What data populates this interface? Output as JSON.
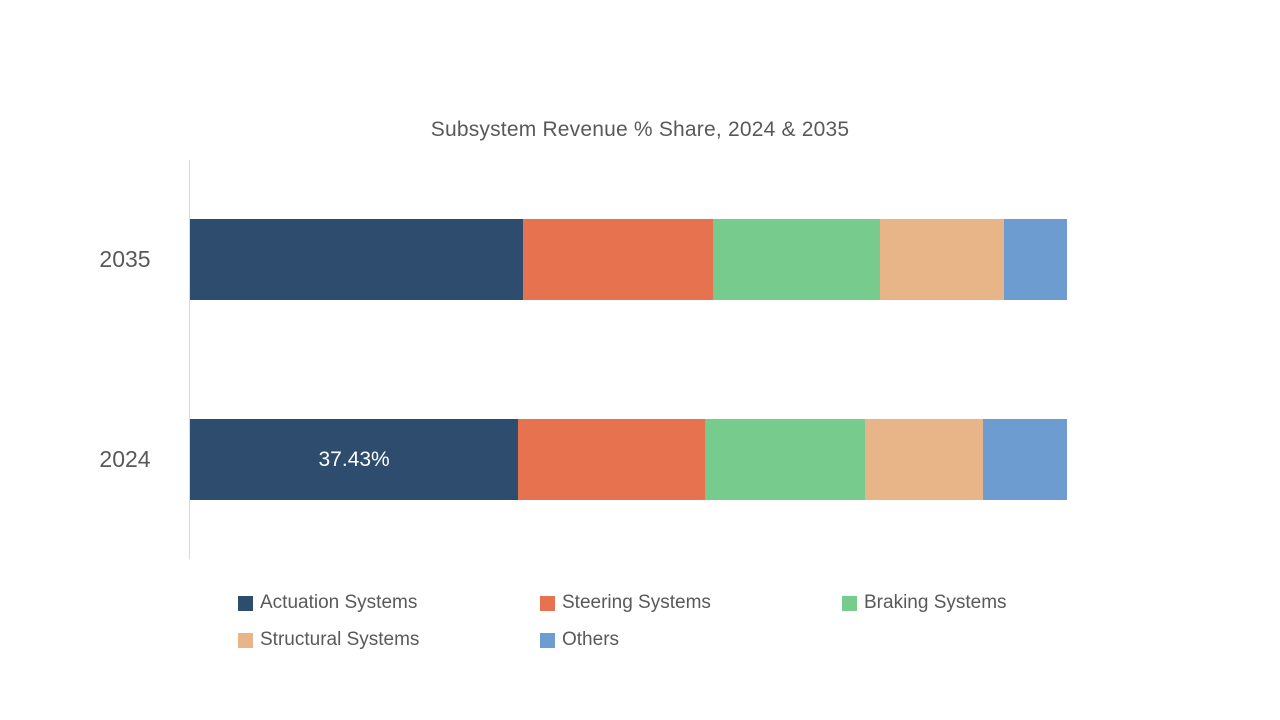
{
  "chart_data": {
    "type": "bar",
    "stacked": true,
    "orientation": "horizontal",
    "title": "Subsystem Revenue % Share, 2024 & 2035",
    "categories": [
      "2035",
      "2024"
    ],
    "series": [
      {
        "name": "Actuation Systems",
        "color": "#2E4D6E",
        "values": [
          37.97,
          37.43
        ]
      },
      {
        "name": "Steering Systems",
        "color": "#E7724F",
        "values": [
          21.72,
          21.33
        ]
      },
      {
        "name": "Braking Systems",
        "color": "#76CB8D",
        "values": [
          18.99,
          18.24
        ]
      },
      {
        "name": "Structural Systems",
        "color": "#E8B588",
        "values": [
          14.14,
          13.45
        ]
      },
      {
        "name": "Others",
        "color": "#6D9CD1",
        "values": [
          7.18,
          9.55
        ]
      }
    ],
    "data_labels": [
      {
        "category": "2024",
        "series": "Actuation Systems",
        "text": "37.43%"
      }
    ],
    "xlim": [
      0,
      100
    ],
    "grid": false,
    "legend_position": "bottom",
    "text_color": "#595959",
    "axis_line_color": "#D9D9D9"
  }
}
